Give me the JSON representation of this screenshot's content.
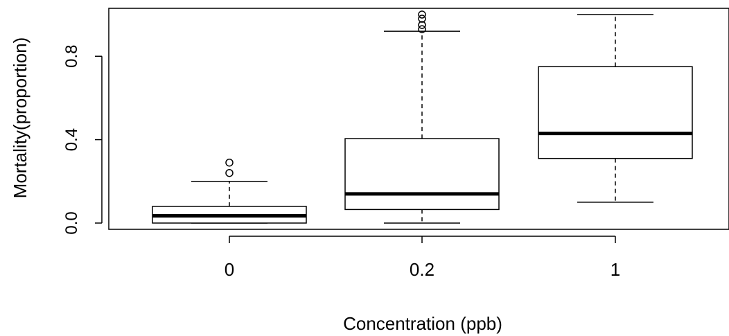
{
  "chart_data": {
    "type": "boxplot",
    "xlabel": "Concentration (ppb)",
    "ylabel": "Mortality(proportion)",
    "ylim": [
      -0.03,
      1.03
    ],
    "yticks": [
      0.0,
      0.4,
      0.8
    ],
    "ytick_labels": [
      "0.0",
      "0.4",
      "0.8"
    ],
    "grid": false,
    "categories": [
      "0",
      "0.2",
      "1"
    ],
    "boxes": [
      {
        "category": "0",
        "whisker_low": 0.0,
        "q1": 0.0,
        "median": 0.035,
        "q3": 0.08,
        "whisker_high": 0.2,
        "outliers": [
          0.24,
          0.29
        ]
      },
      {
        "category": "0.2",
        "whisker_low": 0.0,
        "q1": 0.065,
        "median": 0.14,
        "q3": 0.405,
        "whisker_high": 0.92,
        "outliers": [
          0.93,
          0.95,
          0.98,
          1.0
        ]
      },
      {
        "category": "1",
        "whisker_low": 0.1,
        "q1": 0.31,
        "median": 0.43,
        "q3": 0.75,
        "whisker_high": 1.0,
        "outliers": []
      }
    ]
  }
}
